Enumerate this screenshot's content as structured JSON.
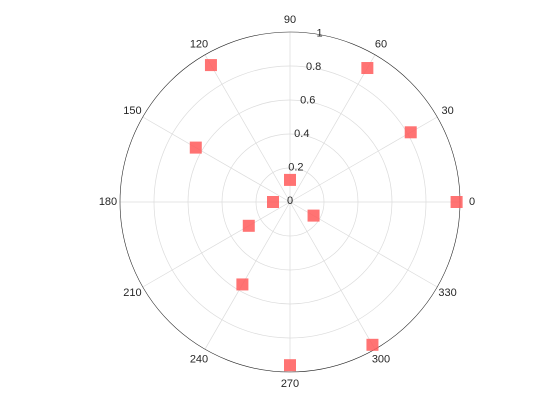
{
  "chart_data": {
    "type": "polar-scatter",
    "theta": [
      0,
      30,
      60,
      90,
      120,
      150,
      180,
      210,
      240,
      270,
      300,
      330
    ],
    "r": [
      0.98,
      0.82,
      0.91,
      0.13,
      0.93,
      0.64,
      0.1,
      0.28,
      0.56,
      0.96,
      0.97,
      0.16
    ],
    "color": "#ff5a5a",
    "rlim": [
      0,
      1
    ],
    "rticks": [
      0,
      0.2,
      0.4,
      0.6,
      0.8,
      1
    ],
    "thetaticks": [
      0,
      30,
      60,
      90,
      120,
      150,
      180,
      210,
      240,
      270,
      300,
      330
    ],
    "grid": true
  }
}
